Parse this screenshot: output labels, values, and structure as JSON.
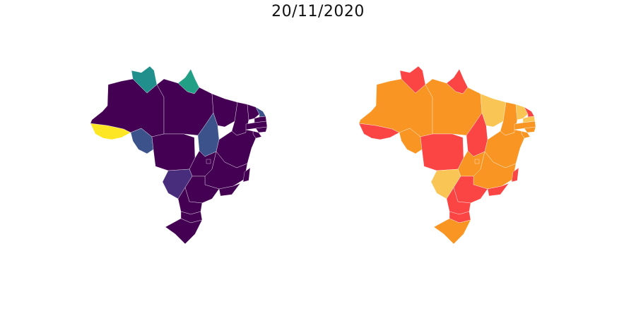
{
  "title": "20/11/2020",
  "maps": [
    {
      "colormap": "viridis",
      "states": [
        {
          "id": "AC",
          "color": "#fde725"
        },
        {
          "id": "AM",
          "color": "#440154"
        },
        {
          "id": "RR",
          "color": "#21908c"
        },
        {
          "id": "AP",
          "color": "#22a085"
        },
        {
          "id": "PA",
          "color": "#440154"
        },
        {
          "id": "RO",
          "color": "#3b528b"
        },
        {
          "id": "MT",
          "color": "#440154"
        },
        {
          "id": "TO",
          "color": "#3b528b"
        },
        {
          "id": "MA",
          "color": "#440154"
        },
        {
          "id": "PI",
          "color": "#440154"
        },
        {
          "id": "CE",
          "color": "#440154"
        },
        {
          "id": "RN",
          "color": "#3b528b"
        },
        {
          "id": "PB",
          "color": "#440154"
        },
        {
          "id": "PE",
          "color": "#440154"
        },
        {
          "id": "AL",
          "color": "#440154"
        },
        {
          "id": "SE",
          "color": "#440154"
        },
        {
          "id": "BA",
          "color": "#440154"
        },
        {
          "id": "GO",
          "color": "#440154"
        },
        {
          "id": "DF",
          "color": "#440154"
        },
        {
          "id": "MG",
          "color": "#440154"
        },
        {
          "id": "ES",
          "color": "#440154"
        },
        {
          "id": "MS",
          "color": "#472d7b"
        },
        {
          "id": "SP",
          "color": "#440154"
        },
        {
          "id": "RJ",
          "color": "#440154"
        },
        {
          "id": "PR",
          "color": "#440154"
        },
        {
          "id": "SC",
          "color": "#440154"
        },
        {
          "id": "RS",
          "color": "#440154"
        }
      ]
    },
    {
      "colormap": "risk-levels",
      "states": [
        {
          "id": "AC",
          "color": "#fb4545"
        },
        {
          "id": "AM",
          "color": "#f99623"
        },
        {
          "id": "RR",
          "color": "#fb4545"
        },
        {
          "id": "AP",
          "color": "#fb4545"
        },
        {
          "id": "PA",
          "color": "#f99623"
        },
        {
          "id": "RO",
          "color": "#f99623"
        },
        {
          "id": "MT",
          "color": "#fb4545"
        },
        {
          "id": "TO",
          "color": "#fb4545"
        },
        {
          "id": "MA",
          "color": "#f9c555"
        },
        {
          "id": "PI",
          "color": "#f99623"
        },
        {
          "id": "CE",
          "color": "#f9c555"
        },
        {
          "id": "RN",
          "color": "#fb4545"
        },
        {
          "id": "PB",
          "color": "#f9c555"
        },
        {
          "id": "PE",
          "color": "#f99623"
        },
        {
          "id": "AL",
          "color": "#f99623"
        },
        {
          "id": "SE",
          "color": "#f99623"
        },
        {
          "id": "BA",
          "color": "#f99623"
        },
        {
          "id": "GO",
          "color": "#f99623"
        },
        {
          "id": "DF",
          "color": "#f99623"
        },
        {
          "id": "MG",
          "color": "#f99623"
        },
        {
          "id": "ES",
          "color": "#fb4545"
        },
        {
          "id": "MS",
          "color": "#f9c555"
        },
        {
          "id": "SP",
          "color": "#fb4545"
        },
        {
          "id": "RJ",
          "color": "#fb4545"
        },
        {
          "id": "PR",
          "color": "#fb4545"
        },
        {
          "id": "SC",
          "color": "#fb4545"
        },
        {
          "id": "RS",
          "color": "#f99623"
        }
      ]
    }
  ]
}
